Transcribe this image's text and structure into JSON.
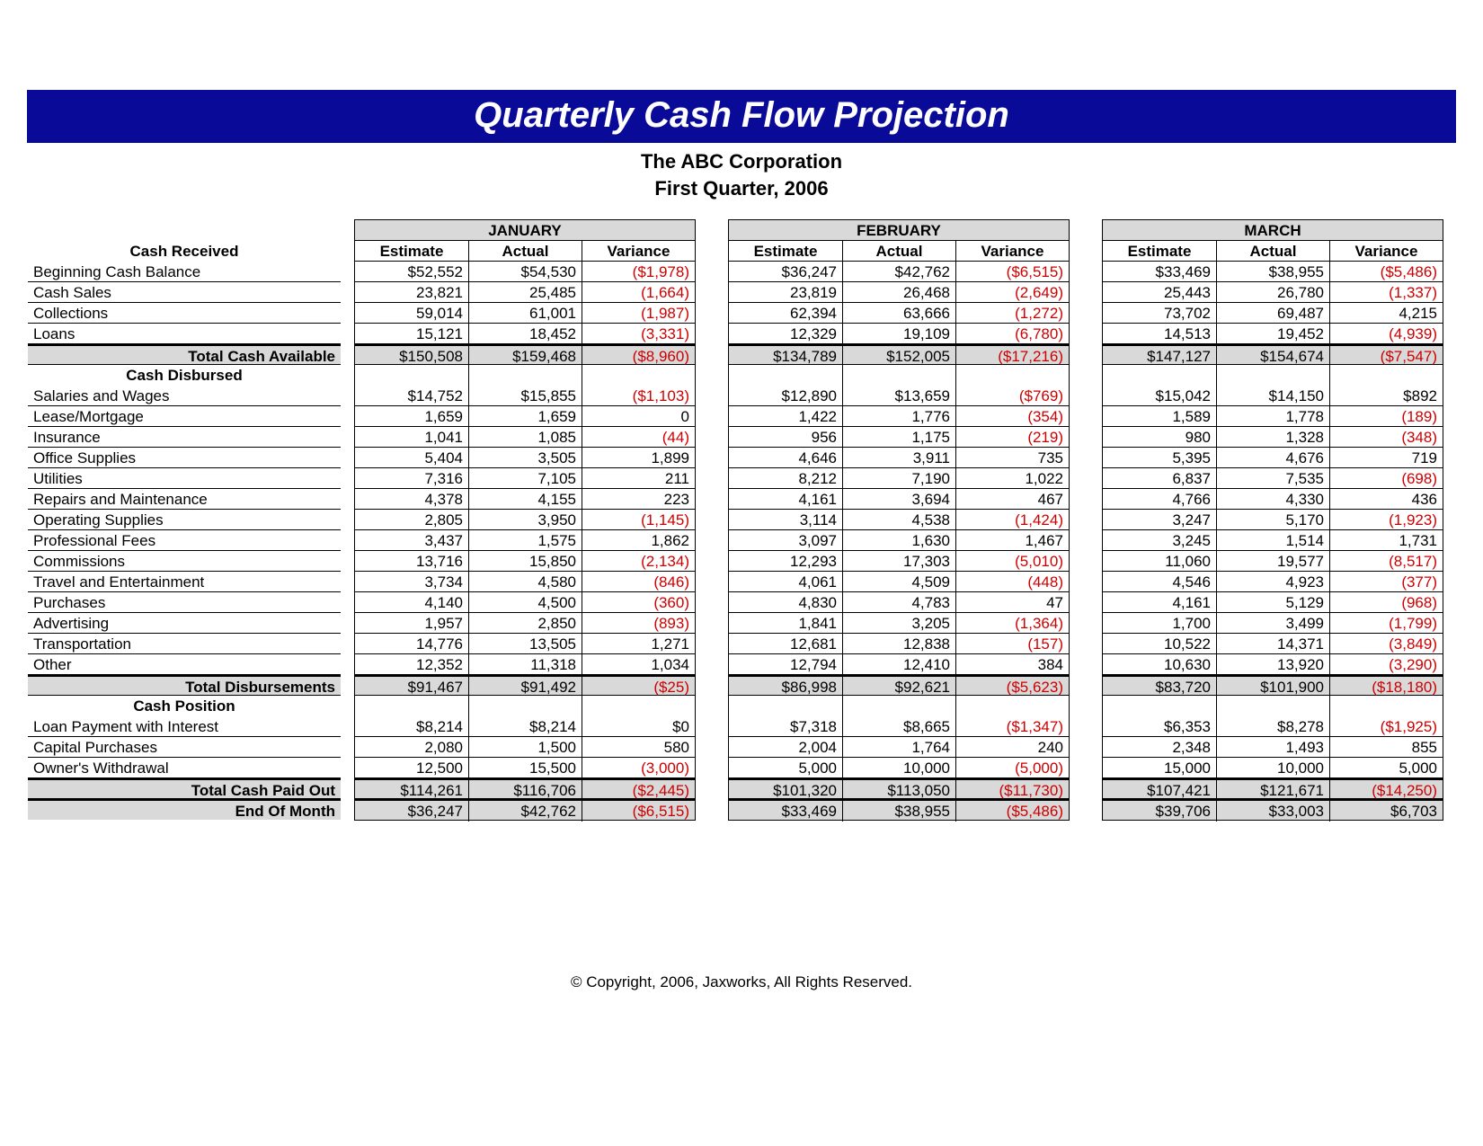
{
  "title": "Quarterly Cash Flow Projection",
  "company": "The ABC Corporation",
  "period": "First Quarter, 2006",
  "copyright": "© Copyright, 2006, Jaxworks, All Rights Reserved.",
  "colors": {
    "title_bg": "#0a0a99",
    "title_fg": "#ffffff",
    "shade": "#d9d9d9",
    "negative": "#cc0000"
  },
  "column_headers": [
    "Estimate",
    "Actual",
    "Variance"
  ],
  "months": [
    {
      "name": "JANUARY",
      "cash_received": [
        {
          "label": "Beginning Cash Balance",
          "est": 52552,
          "act": 54530,
          "var": -1978
        },
        {
          "label": "Cash Sales",
          "est": 23821,
          "act": 25485,
          "var": -1664
        },
        {
          "label": "Collections",
          "est": 59014,
          "act": 61001,
          "var": -1987
        },
        {
          "label": "Loans",
          "est": 15121,
          "act": 18452,
          "var": -3331
        }
      ],
      "total_available": {
        "est": 150508,
        "act": 159468,
        "var": -8960
      },
      "disbursed": [
        {
          "label": "Salaries and Wages",
          "est": 14752,
          "act": 15855,
          "var": -1103
        },
        {
          "label": "Lease/Mortgage",
          "est": 1659,
          "act": 1659,
          "var": 0
        },
        {
          "label": "Insurance",
          "est": 1041,
          "act": 1085,
          "var": -44
        },
        {
          "label": "Office Supplies",
          "est": 5404,
          "act": 3505,
          "var": 1899
        },
        {
          "label": "Utilities",
          "est": 7316,
          "act": 7105,
          "var": 211
        },
        {
          "label": "Repairs and Maintenance",
          "est": 4378,
          "act": 4155,
          "var": 223
        },
        {
          "label": "Operating Supplies",
          "est": 2805,
          "act": 3950,
          "var": -1145
        },
        {
          "label": "Professional Fees",
          "est": 3437,
          "act": 1575,
          "var": 1862
        },
        {
          "label": "Commissions",
          "est": 13716,
          "act": 15850,
          "var": -2134
        },
        {
          "label": "Travel and Entertainment",
          "est": 3734,
          "act": 4580,
          "var": -846
        },
        {
          "label": "Purchases",
          "est": 4140,
          "act": 4500,
          "var": -360
        },
        {
          "label": "Advertising",
          "est": 1957,
          "act": 2850,
          "var": -893
        },
        {
          "label": "Transportation",
          "est": 14776,
          "act": 13505,
          "var": 1271
        },
        {
          "label": "Other",
          "est": 12352,
          "act": 11318,
          "var": 1034
        }
      ],
      "total_disbursements": {
        "est": 91467,
        "act": 91492,
        "var": -25
      },
      "position": [
        {
          "label": "Loan Payment with Interest",
          "est": 8214,
          "act": 8214,
          "var": 0
        },
        {
          "label": "Capital Purchases",
          "est": 2080,
          "act": 1500,
          "var": 580
        },
        {
          "label": "Owner's Withdrawal",
          "est": 12500,
          "act": 15500,
          "var": -3000
        }
      ],
      "total_paid": {
        "est": 114261,
        "act": 116706,
        "var": -2445
      },
      "end_of_month": {
        "est": 36247,
        "act": 42762,
        "var": -6515
      }
    },
    {
      "name": "FEBRUARY",
      "cash_received": [
        {
          "label": "Beginning Cash Balance",
          "est": 36247,
          "act": 42762,
          "var": -6515
        },
        {
          "label": "Cash Sales",
          "est": 23819,
          "act": 26468,
          "var": -2649
        },
        {
          "label": "Collections",
          "est": 62394,
          "act": 63666,
          "var": -1272
        },
        {
          "label": "Loans",
          "est": 12329,
          "act": 19109,
          "var": -6780
        }
      ],
      "total_available": {
        "est": 134789,
        "act": 152005,
        "var": -17216
      },
      "disbursed": [
        {
          "label": "Salaries and Wages",
          "est": 12890,
          "act": 13659,
          "var": -769
        },
        {
          "label": "Lease/Mortgage",
          "est": 1422,
          "act": 1776,
          "var": -354
        },
        {
          "label": "Insurance",
          "est": 956,
          "act": 1175,
          "var": -219
        },
        {
          "label": "Office Supplies",
          "est": 4646,
          "act": 3911,
          "var": 735
        },
        {
          "label": "Utilities",
          "est": 8212,
          "act": 7190,
          "var": 1022
        },
        {
          "label": "Repairs and Maintenance",
          "est": 4161,
          "act": 3694,
          "var": 467
        },
        {
          "label": "Operating Supplies",
          "est": 3114,
          "act": 4538,
          "var": -1424
        },
        {
          "label": "Professional Fees",
          "est": 3097,
          "act": 1630,
          "var": 1467
        },
        {
          "label": "Commissions",
          "est": 12293,
          "act": 17303,
          "var": -5010
        },
        {
          "label": "Travel and Entertainment",
          "est": 4061,
          "act": 4509,
          "var": -448
        },
        {
          "label": "Purchases",
          "est": 4830,
          "act": 4783,
          "var": 47
        },
        {
          "label": "Advertising",
          "est": 1841,
          "act": 3205,
          "var": -1364
        },
        {
          "label": "Transportation",
          "est": 12681,
          "act": 12838,
          "var": -157
        },
        {
          "label": "Other",
          "est": 12794,
          "act": 12410,
          "var": 384
        }
      ],
      "total_disbursements": {
        "est": 86998,
        "act": 92621,
        "var": -5623
      },
      "position": [
        {
          "label": "Loan Payment with Interest",
          "est": 7318,
          "act": 8665,
          "var": -1347
        },
        {
          "label": "Capital Purchases",
          "est": 2004,
          "act": 1764,
          "var": 240
        },
        {
          "label": "Owner's Withdrawal",
          "est": 5000,
          "act": 10000,
          "var": -5000
        }
      ],
      "total_paid": {
        "est": 101320,
        "act": 113050,
        "var": -11730
      },
      "end_of_month": {
        "est": 33469,
        "act": 38955,
        "var": -5486
      }
    },
    {
      "name": "MARCH",
      "cash_received": [
        {
          "label": "Beginning Cash Balance",
          "est": 33469,
          "act": 38955,
          "var": -5486
        },
        {
          "label": "Cash Sales",
          "est": 25443,
          "act": 26780,
          "var": -1337
        },
        {
          "label": "Collections",
          "est": 73702,
          "act": 69487,
          "var": 4215
        },
        {
          "label": "Loans",
          "est": 14513,
          "act": 19452,
          "var": -4939
        }
      ],
      "total_available": {
        "est": 147127,
        "act": 154674,
        "var": -7547
      },
      "disbursed": [
        {
          "label": "Salaries and Wages",
          "est": 15042,
          "act": 14150,
          "var": 892
        },
        {
          "label": "Lease/Mortgage",
          "est": 1589,
          "act": 1778,
          "var": -189
        },
        {
          "label": "Insurance",
          "est": 980,
          "act": 1328,
          "var": -348
        },
        {
          "label": "Office Supplies",
          "est": 5395,
          "act": 4676,
          "var": 719
        },
        {
          "label": "Utilities",
          "est": 6837,
          "act": 7535,
          "var": -698
        },
        {
          "label": "Repairs and Maintenance",
          "est": 4766,
          "act": 4330,
          "var": 436
        },
        {
          "label": "Operating Supplies",
          "est": 3247,
          "act": 5170,
          "var": -1923
        },
        {
          "label": "Professional Fees",
          "est": 3245,
          "act": 1514,
          "var": 1731
        },
        {
          "label": "Commissions",
          "est": 11060,
          "act": 19577,
          "var": -8517
        },
        {
          "label": "Travel and Entertainment",
          "est": 4546,
          "act": 4923,
          "var": -377
        },
        {
          "label": "Purchases",
          "est": 4161,
          "act": 5129,
          "var": -968
        },
        {
          "label": "Advertising",
          "est": 1700,
          "act": 3499,
          "var": -1799
        },
        {
          "label": "Transportation",
          "est": 10522,
          "act": 14371,
          "var": -3849
        },
        {
          "label": "Other",
          "est": 10630,
          "act": 13920,
          "var": -3290
        }
      ],
      "total_disbursements": {
        "est": 83720,
        "act": 101900,
        "var": -18180
      },
      "position": [
        {
          "label": "Loan Payment with Interest",
          "est": 6353,
          "act": 8278,
          "var": -1925
        },
        {
          "label": "Capital Purchases",
          "est": 2348,
          "act": 1493,
          "var": 855
        },
        {
          "label": "Owner's Withdrawal",
          "est": 15000,
          "act": 10000,
          "var": 5000
        }
      ],
      "total_paid": {
        "est": 107421,
        "act": 121671,
        "var": -14250
      },
      "end_of_month": {
        "est": 39706,
        "act": 33003,
        "var": 6703
      }
    }
  ],
  "section_labels": {
    "cash_received": "Cash Received",
    "total_available": "Total Cash Available",
    "cash_disbursed": "Cash Disbursed",
    "total_disbursements": "Total Disbursements",
    "cash_position": "Cash Position",
    "total_paid": "Total Cash Paid Out",
    "end_of_month": "End Of Month"
  }
}
